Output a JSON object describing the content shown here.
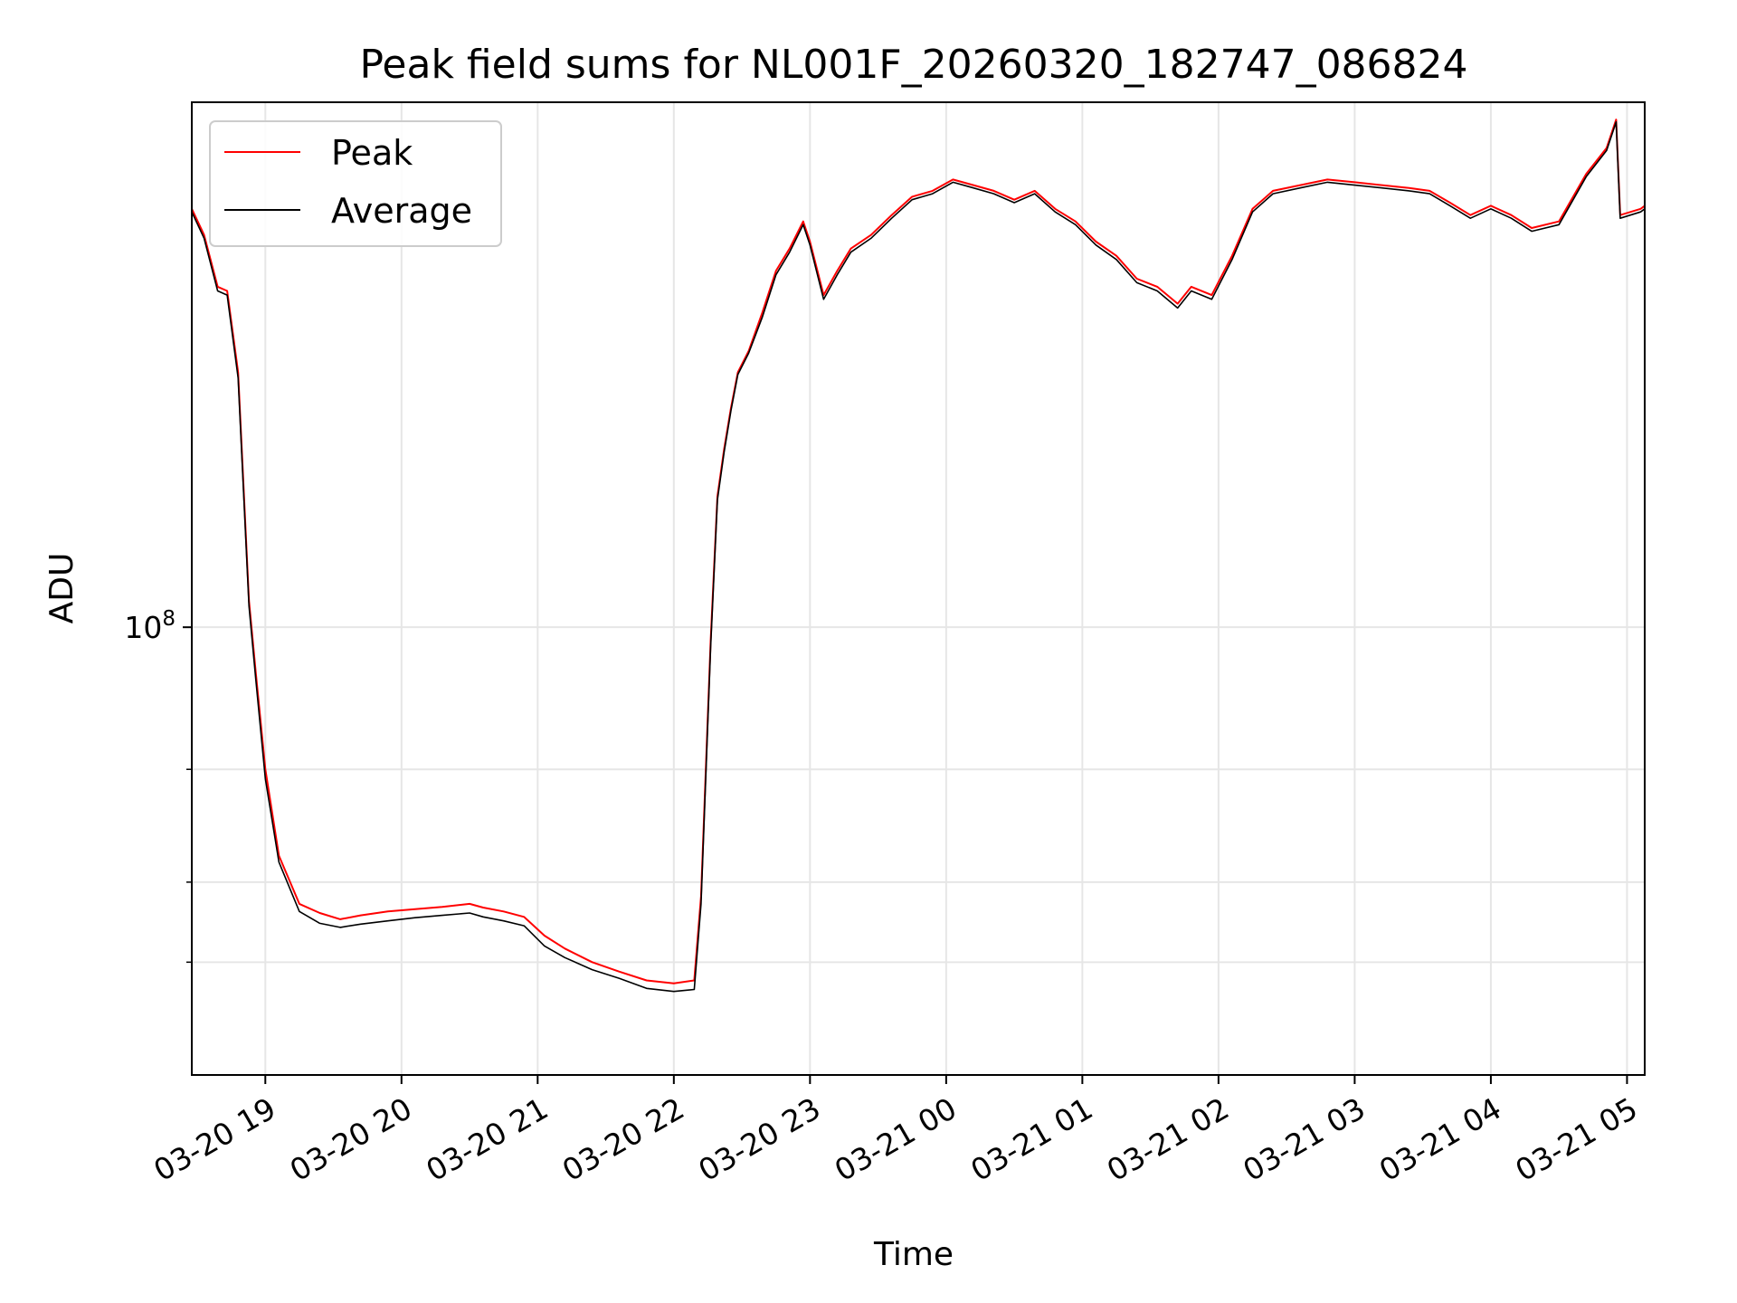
{
  "chart_data": {
    "type": "line",
    "title": "Peak field sums for NL001F_20260320_182747_086824",
    "xlabel": "Time",
    "ylabel": "ADU",
    "yscale": "log",
    "ylim": [
      20000000,
      660000000
    ],
    "xlim_hours": [
      18.46,
      29.13
    ],
    "grid": true,
    "legend_position": "top-left",
    "x_ticks": [
      {
        "hour": 19,
        "label": "03-20 19"
      },
      {
        "hour": 20,
        "label": "03-20 20"
      },
      {
        "hour": 21,
        "label": "03-20 21"
      },
      {
        "hour": 22,
        "label": "03-20 22"
      },
      {
        "hour": 23,
        "label": "03-20 23"
      },
      {
        "hour": 24,
        "label": "03-21 00"
      },
      {
        "hour": 25,
        "label": "03-21 01"
      },
      {
        "hour": 26,
        "label": "03-21 02"
      },
      {
        "hour": 27,
        "label": "03-21 03"
      },
      {
        "hour": 28,
        "label": "03-21 04"
      },
      {
        "hour": 29,
        "label": "03-21 05"
      }
    ],
    "y_major_ticks": [
      {
        "value": 100000000,
        "base": "10",
        "exp": "8"
      }
    ],
    "y_minor_ticks": [
      30000000,
      40000000,
      60000000
    ],
    "series": [
      {
        "name": "Peak",
        "color": "#ff0000",
        "x": [
          18.46,
          18.55,
          18.65,
          18.72,
          18.8,
          18.88,
          18.93,
          19.0,
          19.1,
          19.25,
          19.4,
          19.55,
          19.7,
          19.9,
          20.1,
          20.3,
          20.5,
          20.6,
          20.75,
          20.9,
          21.05,
          21.2,
          21.4,
          21.6,
          21.8,
          22.0,
          22.15,
          22.2,
          22.27,
          22.32,
          22.37,
          22.42,
          22.47,
          22.55,
          22.65,
          22.75,
          22.85,
          22.95,
          23.0,
          23.1,
          23.2,
          23.3,
          23.45,
          23.6,
          23.75,
          23.9,
          24.05,
          24.2,
          24.35,
          24.5,
          24.65,
          24.8,
          24.95,
          25.1,
          25.25,
          25.4,
          25.55,
          25.7,
          25.8,
          25.95,
          26.1,
          26.25,
          26.4,
          26.6,
          26.8,
          27.0,
          27.2,
          27.4,
          27.55,
          27.7,
          27.85,
          28.0,
          28.15,
          28.3,
          28.5,
          28.7,
          28.85,
          28.92,
          28.95,
          29.1,
          29.13
        ],
        "y": [
          450000000,
          410000000,
          340000000,
          335000000,
          250000000,
          110000000,
          85000000,
          60000000,
          44000000,
          37000000,
          35800000,
          35000000,
          35500000,
          36000000,
          36300000,
          36600000,
          37000000,
          36500000,
          36000000,
          35300000,
          33000000,
          31500000,
          30000000,
          29000000,
          28100000,
          27800000,
          28100000,
          38000000,
          95000000,
          160000000,
          190000000,
          220000000,
          250000000,
          270000000,
          310000000,
          360000000,
          390000000,
          430000000,
          400000000,
          330000000,
          360000000,
          390000000,
          410000000,
          440000000,
          470000000,
          480000000,
          500000000,
          490000000,
          480000000,
          465000000,
          480000000,
          450000000,
          430000000,
          400000000,
          380000000,
          350000000,
          340000000,
          320000000,
          340000000,
          330000000,
          380000000,
          450000000,
          480000000,
          490000000,
          500000000,
          495000000,
          490000000,
          485000000,
          480000000,
          460000000,
          440000000,
          455000000,
          440000000,
          420000000,
          430000000,
          510000000,
          560000000,
          620000000,
          440000000,
          450000000,
          455000000
        ]
      },
      {
        "name": "Average",
        "color": "#000000",
        "x": [
          18.46,
          18.55,
          18.65,
          18.72,
          18.8,
          18.88,
          18.93,
          19.0,
          19.1,
          19.25,
          19.4,
          19.55,
          19.7,
          19.9,
          20.1,
          20.3,
          20.5,
          20.6,
          20.75,
          20.9,
          21.05,
          21.2,
          21.4,
          21.6,
          21.8,
          22.0,
          22.15,
          22.2,
          22.27,
          22.32,
          22.37,
          22.42,
          22.47,
          22.55,
          22.65,
          22.75,
          22.85,
          22.95,
          23.0,
          23.1,
          23.2,
          23.3,
          23.45,
          23.6,
          23.75,
          23.9,
          24.05,
          24.2,
          24.35,
          24.5,
          24.65,
          24.8,
          24.95,
          25.1,
          25.25,
          25.4,
          25.55,
          25.7,
          25.8,
          25.95,
          26.1,
          26.25,
          26.4,
          26.6,
          26.8,
          27.0,
          27.2,
          27.4,
          27.55,
          27.7,
          27.85,
          28.0,
          28.15,
          28.3,
          28.5,
          28.7,
          28.85,
          28.92,
          28.95,
          29.1,
          29.13
        ],
        "y": [
          445000000,
          405000000,
          335000000,
          330000000,
          245000000,
          108000000,
          83000000,
          58000000,
          43000000,
          36000000,
          34500000,
          34000000,
          34400000,
          34800000,
          35200000,
          35500000,
          35800000,
          35300000,
          34800000,
          34200000,
          31800000,
          30500000,
          29200000,
          28300000,
          27300000,
          27000000,
          27200000,
          37000000,
          93000000,
          158000000,
          188000000,
          218000000,
          248000000,
          268000000,
          305000000,
          355000000,
          385000000,
          425000000,
          395000000,
          325000000,
          355000000,
          385000000,
          405000000,
          435000000,
          465000000,
          475000000,
          495000000,
          485000000,
          475000000,
          460000000,
          475000000,
          445000000,
          425000000,
          395000000,
          375000000,
          345000000,
          335000000,
          315000000,
          335000000,
          325000000,
          375000000,
          445000000,
          475000000,
          485000000,
          495000000,
          490000000,
          485000000,
          480000000,
          475000000,
          455000000,
          435000000,
          450000000,
          435000000,
          415000000,
          425000000,
          505000000,
          555000000,
          615000000,
          435000000,
          445000000,
          450000000
        ]
      }
    ]
  }
}
